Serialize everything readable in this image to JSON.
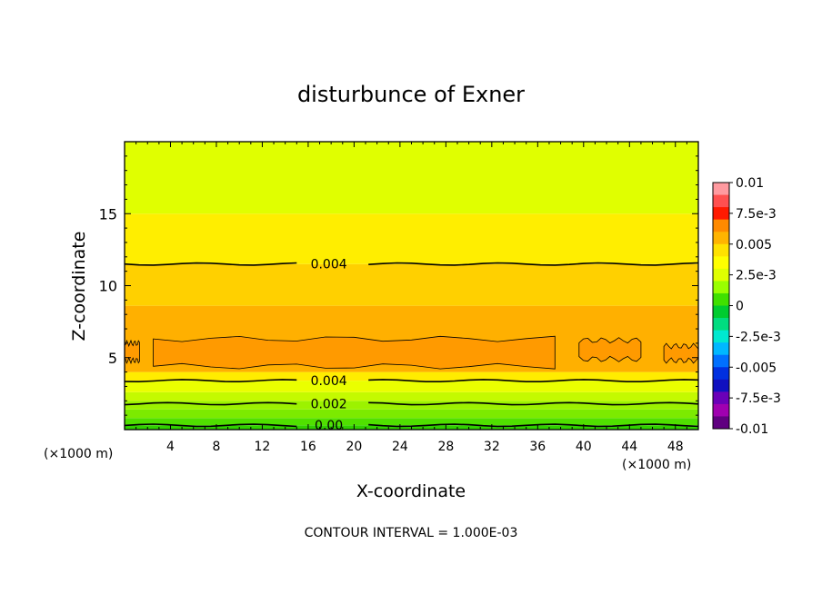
{
  "chart_data": {
    "type": "heatmap",
    "title": "disturbunce of Exner",
    "xlabel": "X-coordinate",
    "ylabel": "Z-coordinate",
    "x_unit_left": "(×1000 m)",
    "x_unit_right": "(×1000 m)",
    "xlim": [
      0,
      50
    ],
    "ylim": [
      0,
      20
    ],
    "x_ticks": [
      4,
      8,
      12,
      16,
      20,
      24,
      28,
      32,
      36,
      40,
      44,
      48
    ],
    "y_ticks": [
      5,
      10,
      15
    ],
    "footer": "CONTOUR INTERVAL = 1.000E-03",
    "colorbar": {
      "range": [
        -0.01,
        0.01
      ],
      "tick_values": [
        0.01,
        0.0075,
        0.005,
        0.0025,
        0,
        -0.0025,
        -0.005,
        -0.0075,
        -0.01
      ],
      "tick_labels": [
        "0.01",
        "7.5e-3",
        "0.005",
        "2.5e-3",
        "0",
        "-2.5e-3",
        "-0.005",
        "-7.5e-3",
        "-0.01"
      ],
      "colors": [
        "#ff9aa0",
        "#ff5050",
        "#ff1a00",
        "#ff8a00",
        "#ffb400",
        "#ffe200",
        "#ffff00",
        "#e0ff00",
        "#9aff00",
        "#40e000",
        "#00cc30",
        "#00dd80",
        "#00e8d0",
        "#00b8ff",
        "#0070ff",
        "#0030e0",
        "#1010c0",
        "#6a00b8",
        "#a000b0",
        "#600080"
      ]
    },
    "bands": [
      {
        "z0": 0.0,
        "z1": 0.3,
        "color": "#30d000"
      },
      {
        "z0": 0.3,
        "z1": 0.8,
        "color": "#50e000"
      },
      {
        "z0": 0.8,
        "z1": 1.4,
        "color": "#7cea00"
      },
      {
        "z0": 1.4,
        "z1": 2.0,
        "color": "#9cf200"
      },
      {
        "z0": 2.0,
        "z1": 2.6,
        "color": "#c4fa00"
      },
      {
        "z0": 2.6,
        "z1": 3.4,
        "color": "#eaff00"
      },
      {
        "z0": 3.4,
        "z1": 4.0,
        "color": "#ffec00"
      },
      {
        "z0": 4.0,
        "z1": 8.6,
        "color": "#ffb000"
      },
      {
        "z0": 8.6,
        "z1": 11.5,
        "color": "#ffd000"
      },
      {
        "z0": 11.5,
        "z1": 15.0,
        "color": "#ffee00"
      },
      {
        "z0": 15.0,
        "z1": 20.0,
        "color": "#e0ff00"
      }
    ],
    "contours": [
      {
        "z": 11.5,
        "label": "0.004",
        "label_x": 17.8
      },
      {
        "z": 3.4,
        "label": "0.004",
        "label_x": 17.8
      },
      {
        "z": 1.8,
        "label": "0.002",
        "label_x": 17.8
      },
      {
        "z": 0.3,
        "label": "0.00",
        "label_x": 17.8
      }
    ],
    "maxima_regions": [
      {
        "x0": 2.5,
        "x1": 37.5,
        "z0": 4.4,
        "z1": 6.3,
        "color": "#ff9a00"
      },
      {
        "x0": 0.0,
        "x1": 1.3,
        "z0": 4.8,
        "z1": 6.0,
        "color": "#ff9a00"
      },
      {
        "x0": 39.6,
        "x1": 45.0,
        "z0": 4.9,
        "z1": 6.2,
        "color": "#ff9a00"
      },
      {
        "x0": 47.0,
        "x1": 50.0,
        "z0": 4.8,
        "z1": 5.8,
        "color": "#ff9a00"
      }
    ]
  }
}
